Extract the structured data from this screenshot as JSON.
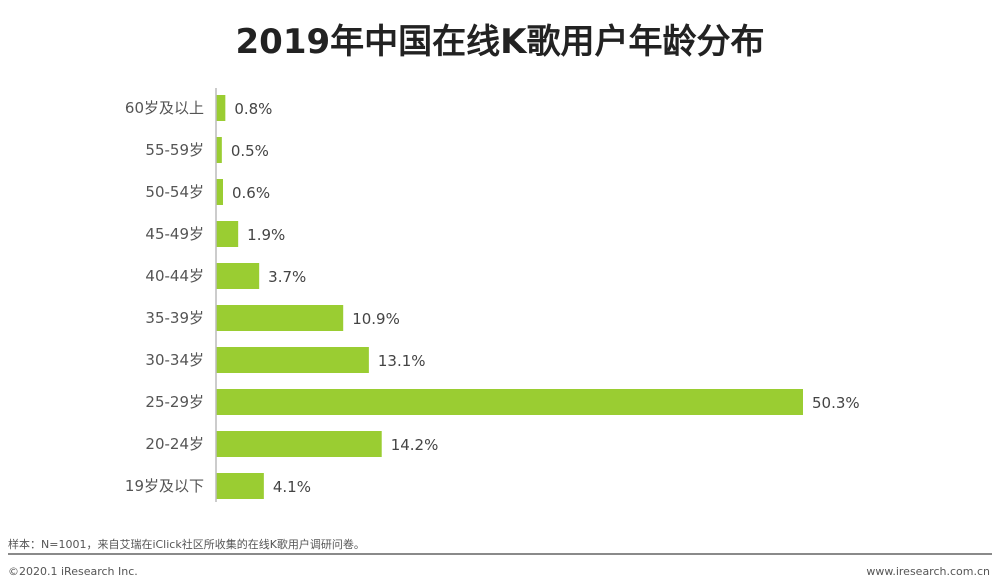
{
  "chart_data": {
    "type": "bar",
    "orientation": "horizontal",
    "title": "2019年中国在线K歌用户年龄分布",
    "categories": [
      "60岁及以上",
      "55-59岁",
      "50-54岁",
      "45-49岁",
      "40-44岁",
      "35-39岁",
      "30-34岁",
      "25-29岁",
      "20-24岁",
      "19岁及以下"
    ],
    "values": [
      0.8,
      0.5,
      0.6,
      1.9,
      3.7,
      10.9,
      13.1,
      50.3,
      14.2,
      4.1
    ],
    "data_labels": [
      "0.8%",
      "0.5%",
      "0.6%",
      "1.9%",
      "3.7%",
      "10.9%",
      "13.1%",
      "50.3%",
      "14.2%",
      "4.1%"
    ],
    "unit": "%",
    "xlim": [
      0,
      50.3
    ],
    "grid": false,
    "bar_color": "#9ACD32"
  },
  "footer": {
    "note": "样本：N=1001，来自艾瑞在iClick社区所收集的在线K歌用户调研问卷。",
    "copyright": "©2020.1 iResearch Inc.",
    "website": "www.iresearch.com.cn"
  }
}
